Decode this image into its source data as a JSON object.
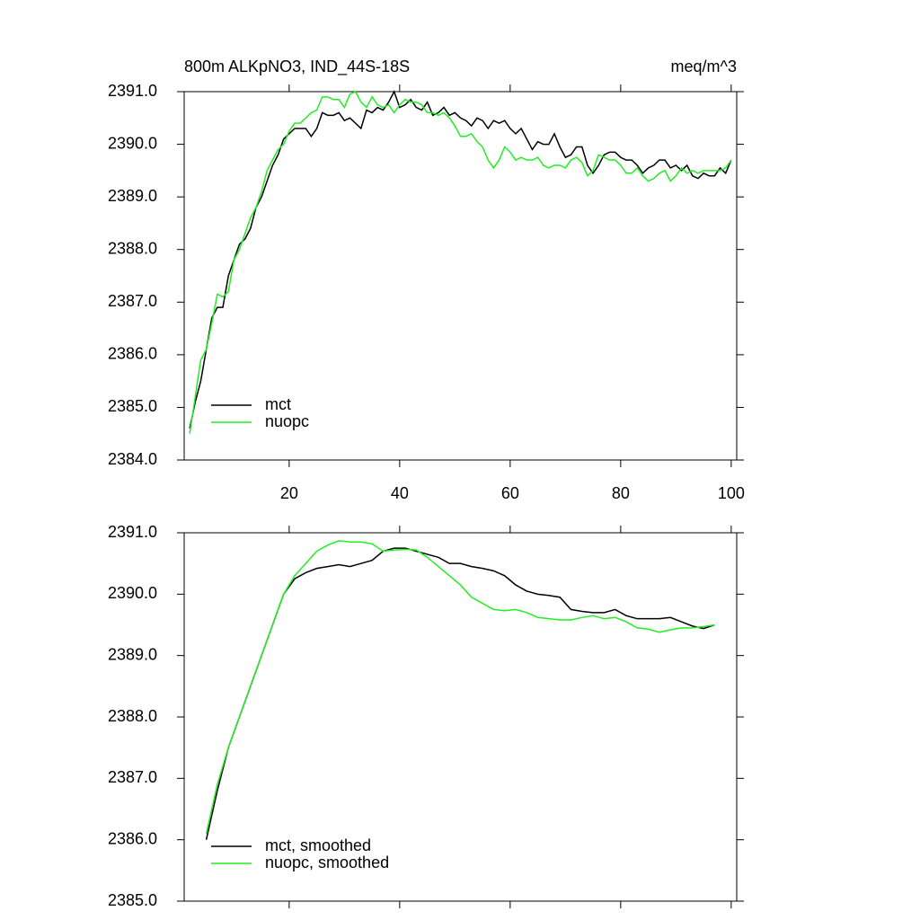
{
  "chart_data": [
    {
      "type": "line",
      "title": "800m ALKpNO3, IND_44S-18S",
      "units": "meq/m^3",
      "xlim": [
        1,
        101
      ],
      "xticks": [
        20,
        40,
        60,
        80,
        100
      ],
      "xtick_labels": true,
      "ylim": [
        2384,
        2391
      ],
      "yticks": [
        {
          "value": 2384,
          "label": "2384.0"
        },
        {
          "value": 2385,
          "label": "2385.0"
        },
        {
          "value": 2386,
          "label": "2386.0"
        },
        {
          "value": 2387,
          "label": "2387.0"
        },
        {
          "value": 2388,
          "label": "2388.0"
        },
        {
          "value": 2389,
          "label": "2389.0"
        },
        {
          "value": 2390,
          "label": "2390.0"
        },
        {
          "value": 2391,
          "label": "2391.0"
        }
      ],
      "legend": "lower left",
      "x": [
        2,
        3,
        4,
        5,
        6,
        7,
        8,
        9,
        10,
        11,
        12,
        13,
        14,
        15,
        16,
        17,
        18,
        19,
        20,
        21,
        22,
        23,
        24,
        25,
        26,
        27,
        28,
        29,
        30,
        31,
        32,
        33,
        34,
        35,
        36,
        37,
        38,
        39,
        40,
        41,
        42,
        43,
        44,
        45,
        46,
        47,
        48,
        49,
        50,
        51,
        52,
        53,
        54,
        55,
        56,
        57,
        58,
        59,
        60,
        61,
        62,
        63,
        64,
        65,
        66,
        67,
        68,
        69,
        70,
        71,
        72,
        73,
        74,
        75,
        76,
        77,
        78,
        79,
        80,
        81,
        82,
        83,
        84,
        85,
        86,
        87,
        88,
        89,
        90,
        91,
        92,
        93,
        94,
        95,
        96,
        97,
        98,
        99,
        100
      ],
      "series": [
        {
          "name": "mct",
          "color": "#000000",
          "values": [
            2384.6,
            2385.1,
            2385.5,
            2386.1,
            2386.7,
            2386.9,
            2386.9,
            2387.5,
            2387.8,
            2388.1,
            2388.2,
            2388.4,
            2388.8,
            2389.0,
            2389.3,
            2389.6,
            2389.8,
            2390.1,
            2390.2,
            2390.3,
            2390.3,
            2390.3,
            2390.15,
            2390.3,
            2390.6,
            2390.55,
            2390.55,
            2390.6,
            2390.45,
            2390.5,
            2390.4,
            2390.3,
            2390.65,
            2390.6,
            2390.7,
            2390.65,
            2390.8,
            2391.0,
            2390.7,
            2390.75,
            2390.85,
            2390.7,
            2390.65,
            2390.8,
            2390.55,
            2390.6,
            2390.7,
            2390.55,
            2390.6,
            2390.5,
            2390.45,
            2390.35,
            2390.5,
            2390.45,
            2390.3,
            2390.45,
            2390.4,
            2390.45,
            2390.3,
            2390.2,
            2390.3,
            2390.1,
            2389.9,
            2390.05,
            2390.0,
            2390.0,
            2390.2,
            2389.95,
            2389.75,
            2389.8,
            2389.95,
            2389.95,
            2389.6,
            2389.45,
            2389.6,
            2389.8,
            2389.85,
            2389.85,
            2389.75,
            2389.7,
            2389.7,
            2389.6,
            2389.45,
            2389.55,
            2389.6,
            2389.7,
            2389.7,
            2389.55,
            2389.6,
            2389.5,
            2389.6,
            2389.4,
            2389.35,
            2389.45,
            2389.4,
            2389.4,
            2389.55,
            2389.45,
            2389.7
          ]
        },
        {
          "name": "nuopc",
          "color": "#22ee22",
          "values": [
            2384.5,
            2385.2,
            2385.9,
            2386.1,
            2386.6,
            2387.15,
            2387.1,
            2387.2,
            2387.8,
            2388.0,
            2388.3,
            2388.6,
            2388.8,
            2389.1,
            2389.5,
            2389.7,
            2389.9,
            2390.0,
            2390.25,
            2390.4,
            2390.4,
            2390.5,
            2390.6,
            2390.65,
            2390.9,
            2390.9,
            2390.85,
            2390.85,
            2390.7,
            2390.95,
            2391.0,
            2390.8,
            2390.7,
            2390.9,
            2390.75,
            2390.7,
            2390.75,
            2390.6,
            2390.75,
            2390.85,
            2390.8,
            2390.8,
            2390.75,
            2390.6,
            2390.6,
            2390.55,
            2390.6,
            2390.5,
            2390.35,
            2390.15,
            2390.15,
            2390.2,
            2390.05,
            2389.95,
            2389.7,
            2389.55,
            2389.7,
            2389.95,
            2389.85,
            2389.7,
            2389.75,
            2389.7,
            2389.7,
            2389.75,
            2389.6,
            2389.55,
            2389.6,
            2389.6,
            2389.55,
            2389.7,
            2389.75,
            2389.65,
            2389.4,
            2389.5,
            2389.8,
            2389.75,
            2389.7,
            2389.7,
            2389.6,
            2389.45,
            2389.45,
            2389.55,
            2389.4,
            2389.3,
            2389.35,
            2389.45,
            2389.5,
            2389.3,
            2389.4,
            2389.55,
            2389.45,
            2389.5,
            2389.45,
            2389.5,
            2389.5,
            2389.5,
            2389.5,
            2389.55,
            2389.7
          ]
        }
      ]
    },
    {
      "type": "line",
      "xlim": [
        1,
        101
      ],
      "xticks": [
        20,
        40,
        60,
        80,
        100
      ],
      "xtick_labels": false,
      "ylim": [
        2385,
        2391
      ],
      "yticks": [
        {
          "value": 2385,
          "label": "2385.0"
        },
        {
          "value": 2386,
          "label": "2386.0"
        },
        {
          "value": 2387,
          "label": "2387.0"
        },
        {
          "value": 2388,
          "label": "2388.0"
        },
        {
          "value": 2389,
          "label": "2389.0"
        },
        {
          "value": 2390,
          "label": "2390.0"
        },
        {
          "value": 2391,
          "label": "2391.0"
        }
      ],
      "legend": "lower left",
      "x": [
        5,
        7,
        9,
        11,
        13,
        15,
        17,
        19,
        21,
        23,
        25,
        27,
        29,
        31,
        33,
        35,
        37,
        39,
        41,
        43,
        45,
        47,
        49,
        51,
        53,
        55,
        57,
        59,
        61,
        63,
        65,
        67,
        69,
        71,
        73,
        75,
        77,
        79,
        81,
        83,
        85,
        87,
        89,
        91,
        93,
        95,
        97
      ],
      "series": [
        {
          "name": "mct, smoothed",
          "color": "#000000",
          "values": [
            2386.0,
            2386.8,
            2387.5,
            2388.0,
            2388.5,
            2389.0,
            2389.5,
            2390.0,
            2390.25,
            2390.35,
            2390.42,
            2390.45,
            2390.48,
            2390.45,
            2390.5,
            2390.55,
            2390.7,
            2390.75,
            2390.75,
            2390.7,
            2390.65,
            2390.6,
            2390.5,
            2390.5,
            2390.45,
            2390.42,
            2390.38,
            2390.3,
            2390.15,
            2390.05,
            2390.0,
            2389.98,
            2389.95,
            2389.75,
            2389.72,
            2389.7,
            2389.7,
            2389.75,
            2389.65,
            2389.6,
            2389.6,
            2389.6,
            2389.62,
            2389.55,
            2389.48,
            2389.44,
            2389.5
          ]
        },
        {
          "name": "nuopc, smoothed",
          "color": "#22ee22",
          "values": [
            2386.1,
            2386.9,
            2387.5,
            2388.0,
            2388.5,
            2389.0,
            2389.5,
            2390.0,
            2390.3,
            2390.5,
            2390.7,
            2390.8,
            2390.87,
            2390.85,
            2390.85,
            2390.82,
            2390.7,
            2390.72,
            2390.73,
            2390.72,
            2390.6,
            2390.45,
            2390.3,
            2390.15,
            2389.95,
            2389.85,
            2389.75,
            2389.73,
            2389.75,
            2389.7,
            2389.62,
            2389.6,
            2389.58,
            2389.58,
            2389.62,
            2389.65,
            2389.6,
            2389.62,
            2389.55,
            2389.45,
            2389.43,
            2389.38,
            2389.42,
            2389.45,
            2389.45,
            2389.47,
            2389.5
          ]
        }
      ]
    }
  ]
}
